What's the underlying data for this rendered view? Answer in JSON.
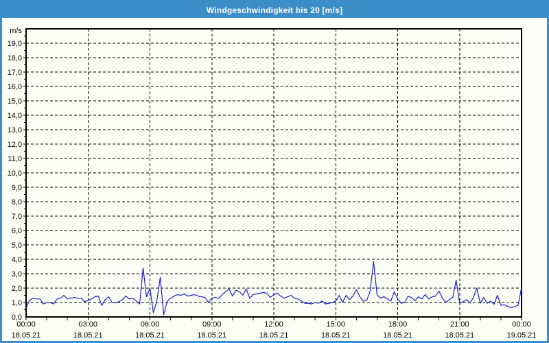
{
  "window": {
    "title": "Windgeschwindigkeit bis 20 [m/s]"
  },
  "colors": {
    "titlebar_bg": "#3d8dc8",
    "frame_border": "#3d8dc8",
    "content_bg": "#fcfdf6",
    "title_text": "#ffffff",
    "grid": "#000000",
    "axis": "#000000",
    "tick_text": "#000000",
    "line": "#1e1ec8"
  },
  "chart_data": {
    "type": "line",
    "title": "Windgeschwindigkeit bis 20 [m/s]",
    "ylabel": "m/s",
    "xlabel": "",
    "ylim": [
      0,
      20
    ],
    "ytick_step": 1.0,
    "ytick_decimal_separator": ",",
    "grid": "dashed",
    "legend": "none",
    "x_start_hour": 0,
    "x_end_hour": 24,
    "x_major_step_hours": 3,
    "x_minor_step_hours": 1,
    "sample_interval_minutes": 10,
    "xticks": [
      {
        "time": "00:00",
        "date": "18.05.21"
      },
      {
        "time": "03:00",
        "date": "18.05.21"
      },
      {
        "time": "06:00",
        "date": "18.05.21"
      },
      {
        "time": "09:00",
        "date": "18.05.21"
      },
      {
        "time": "12:00",
        "date": "18.05.21"
      },
      {
        "time": "15:00",
        "date": "18.05.21"
      },
      {
        "time": "18:00",
        "date": "18.05.21"
      },
      {
        "time": "21:00",
        "date": "18.05.21"
      },
      {
        "time": "00:00",
        "date": "19.05.21"
      }
    ],
    "series": [
      {
        "name": "Windgeschwindigkeit",
        "unit": "m/s",
        "values": [
          0.6,
          1.15,
          1.3,
          1.25,
          1.25,
          0.9,
          1.0,
          1.0,
          0.9,
          1.25,
          1.3,
          1.5,
          1.25,
          1.3,
          1.35,
          1.3,
          1.3,
          1.05,
          1.15,
          1.25,
          1.4,
          1.45,
          0.8,
          1.2,
          1.4,
          1.0,
          1.0,
          1.05,
          1.2,
          1.45,
          1.25,
          1.3,
          1.1,
          0.9,
          3.4,
          1.4,
          2.0,
          0.3,
          1.1,
          2.75,
          0.15,
          1.1,
          1.3,
          1.45,
          1.55,
          1.5,
          1.6,
          1.45,
          1.5,
          1.55,
          1.45,
          1.4,
          1.35,
          1.0,
          1.3,
          1.35,
          1.3,
          1.55,
          1.75,
          1.95,
          1.45,
          1.85,
          1.75,
          1.5,
          1.95,
          1.3,
          1.55,
          1.6,
          1.65,
          1.7,
          1.65,
          1.35,
          1.55,
          1.65,
          1.45,
          1.3,
          1.4,
          1.5,
          1.3,
          1.25,
          1.1,
          0.95,
          0.95,
          0.9,
          1.0,
          0.95,
          1.1,
          0.9,
          0.95,
          1.0,
          1.1,
          1.5,
          1.0,
          1.5,
          1.2,
          1.45,
          1.9,
          1.4,
          1.1,
          1.15,
          1.8,
          3.85,
          1.55,
          1.3,
          1.4,
          1.25,
          1.1,
          1.75,
          1.25,
          0.95,
          1.0,
          1.43,
          1.35,
          1.12,
          1.4,
          1.25,
          1.55,
          1.25,
          1.4,
          1.45,
          1.8,
          1.3,
          1.0,
          1.2,
          1.35,
          2.55,
          0.95,
          1.05,
          1.2,
          0.95,
          1.35,
          2.0,
          0.95,
          1.35,
          0.95,
          1.1,
          0.88,
          1.5,
          0.8,
          0.85,
          0.73,
          0.65,
          0.72,
          0.8,
          2.05
        ]
      }
    ]
  }
}
